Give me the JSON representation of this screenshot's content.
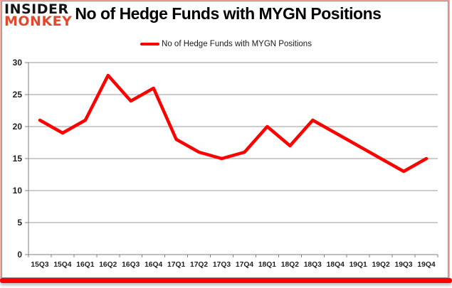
{
  "header": {
    "logo_line1": "INSIDER",
    "logo_line2": "MONKEY",
    "title": "No of Hedge Funds with MYGN Positions"
  },
  "legend": {
    "label": "No of Hedge Funds with MYGN Positions"
  },
  "colors": {
    "line": "#ff0000",
    "gridline": "#9a9a9a",
    "axis": "#7f7f7f",
    "axis_text": "#1f1f1f",
    "logo_insider": "#141414",
    "logo_monkey": "#e2482e",
    "bottom_bar": "#fe0000"
  },
  "chart_data": {
    "type": "line",
    "title": "No of Hedge Funds with MYGN Positions",
    "series_name": "No of Hedge Funds with MYGN Positions",
    "categories": [
      "15Q3",
      "15Q4",
      "16Q1",
      "16Q2",
      "16Q3",
      "16Q4",
      "17Q1",
      "17Q2",
      "17Q3",
      "17Q4",
      "18Q1",
      "18Q2",
      "18Q3",
      "18Q4",
      "19Q1",
      "19Q2",
      "19Q3",
      "19Q4"
    ],
    "values": [
      21,
      19,
      21,
      28,
      24,
      26,
      18,
      16,
      15,
      16,
      20,
      17,
      21,
      19,
      17,
      15,
      13,
      15
    ],
    "xlabel": "",
    "ylabel": "",
    "ylim": [
      0,
      30
    ],
    "yticks": [
      0,
      5,
      10,
      15,
      20,
      25,
      30
    ],
    "grid": true,
    "legend_position": "top-center"
  }
}
